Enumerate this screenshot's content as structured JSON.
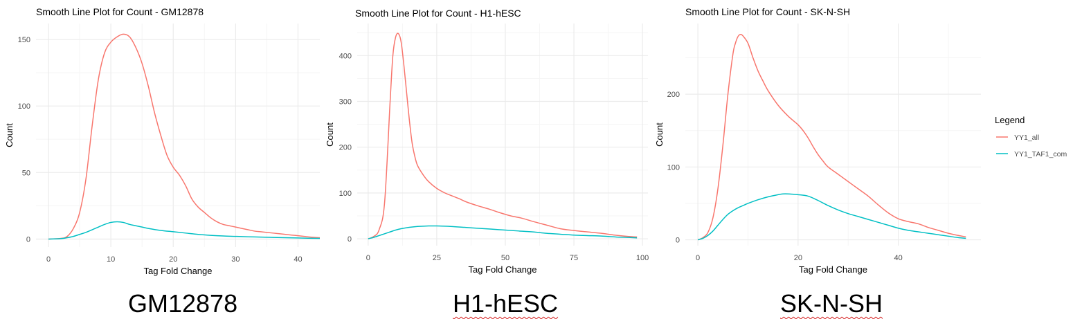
{
  "colors": {
    "yy1_all": "#F8766D",
    "yy1_taf1": "#00BFC4",
    "grid_major": "#ebebeb",
    "grid_minor": "#f5f5f5",
    "text": "#4d4d4d"
  },
  "legend": {
    "title": "Legend",
    "items": [
      "YY1_all",
      "YY1_TAF1_com"
    ]
  },
  "captions": [
    "GM12878",
    "H1-hESC",
    "SK-N-SH"
  ],
  "chart_data": [
    {
      "type": "line",
      "title": "Smooth Line Plot for Count - GM12878",
      "xlabel": "Tag Fold Change",
      "ylabel": "Count",
      "xlim": [
        -2,
        43.5
      ],
      "ylim": [
        -6,
        162
      ],
      "xticks": [
        0,
        10,
        20,
        30,
        40
      ],
      "yticks": [
        0,
        50,
        100,
        150
      ],
      "grid": true,
      "series": [
        {
          "name": "YY1_all",
          "x": [
            0,
            2,
            3,
            4,
            5,
            6,
            7,
            8,
            9,
            10,
            11,
            12,
            13,
            14,
            15,
            16,
            17,
            18,
            19,
            20,
            21,
            22,
            23,
            24,
            25,
            26,
            27,
            28,
            29,
            30,
            31,
            32,
            33,
            34,
            35,
            36,
            37,
            38,
            39,
            40,
            41,
            42,
            43.5
          ],
          "y": [
            0,
            0.5,
            2,
            8,
            20,
            45,
            85,
            120,
            140,
            148,
            152,
            154,
            152,
            144,
            132,
            115,
            95,
            78,
            63,
            54,
            48,
            40,
            30,
            24,
            20,
            16,
            13,
            11,
            10,
            9,
            8,
            7,
            6,
            5.5,
            5,
            4.5,
            4,
            3.5,
            3,
            2.5,
            2,
            1.5,
            1
          ]
        },
        {
          "name": "YY1_TAF1_com",
          "x": [
            0,
            2,
            3,
            4,
            5,
            6,
            7,
            8,
            9,
            10,
            11,
            12,
            13,
            14,
            15,
            16,
            18,
            20,
            22,
            24,
            26,
            28,
            30,
            32,
            34,
            36,
            38,
            40,
            43.5
          ],
          "y": [
            0,
            0.3,
            1,
            2,
            3.5,
            5,
            7,
            9,
            11,
            12.5,
            13,
            12.5,
            11,
            10,
            9,
            8,
            6.5,
            5.5,
            4.5,
            3.5,
            2.8,
            2.3,
            2,
            1.7,
            1.5,
            1.2,
            1,
            0.8,
            0.5
          ]
        }
      ]
    },
    {
      "type": "line",
      "title": "Smooth Line Plot for Count - H1-hESC",
      "xlabel": "Tag Fold Change",
      "ylabel": "Count",
      "xlim": [
        -4,
        102
      ],
      "ylim": [
        -15,
        470
      ],
      "xticks": [
        0,
        25,
        50,
        75,
        100
      ],
      "yticks": [
        0,
        100,
        200,
        300,
        400
      ],
      "grid": true,
      "series": [
        {
          "name": "YY1_all",
          "x": [
            0,
            2,
            4,
            6,
            8,
            9,
            10,
            11,
            12,
            13,
            14,
            15,
            16,
            17,
            18,
            20,
            22,
            25,
            28,
            30,
            33,
            36,
            40,
            44,
            48,
            52,
            56,
            60,
            65,
            70,
            75,
            80,
            85,
            90,
            95,
            98
          ],
          "y": [
            0,
            5,
            20,
            80,
            300,
            400,
            440,
            448,
            430,
            380,
            320,
            260,
            210,
            180,
            160,
            140,
            125,
            110,
            100,
            95,
            88,
            80,
            72,
            65,
            57,
            50,
            45,
            38,
            30,
            22,
            18,
            15,
            12,
            8,
            5,
            4
          ]
        },
        {
          "name": "YY1_TAF1_com",
          "x": [
            0,
            2,
            4,
            6,
            8,
            10,
            12,
            15,
            18,
            20,
            22,
            25,
            30,
            35,
            40,
            45,
            50,
            55,
            60,
            65,
            70,
            75,
            80,
            85,
            90,
            95,
            98
          ],
          "y": [
            0,
            3,
            7,
            11,
            15,
            19,
            22,
            25,
            27,
            27.5,
            28,
            28,
            27,
            25,
            23,
            21,
            19,
            17,
            15,
            12,
            10,
            8,
            7,
            6,
            4,
            3,
            2
          ]
        }
      ]
    },
    {
      "type": "line",
      "title": "Smooth Line Plot for Count - SK-N-SH",
      "xlabel": "Tag Fold Change",
      "ylabel": "Count",
      "xlim": [
        -2.5,
        56.5
      ],
      "ylim": [
        -8,
        297
      ],
      "xticks": [
        0,
        20,
        40
      ],
      "yticks": [
        0,
        100,
        200
      ],
      "grid": true,
      "series": [
        {
          "name": "YY1_all",
          "x": [
            0,
            1,
            2,
            3,
            4,
            5,
            6,
            7,
            7.5,
            8,
            8.5,
            9,
            10,
            11,
            12,
            13,
            14,
            16,
            18,
            20,
            21,
            22,
            23,
            24,
            25,
            26,
            28,
            30,
            32,
            34,
            36,
            38,
            40,
            42,
            44,
            46,
            48,
            50,
            52,
            53.5
          ],
          "y": [
            0,
            3,
            10,
            30,
            70,
            130,
            200,
            255,
            270,
            279,
            282,
            280,
            270,
            250,
            232,
            218,
            205,
            185,
            170,
            158,
            150,
            140,
            128,
            117,
            108,
            100,
            90,
            80,
            70,
            60,
            48,
            37,
            29,
            25,
            22,
            17,
            13,
            9,
            6,
            4
          ]
        },
        {
          "name": "YY1_TAF1_com",
          "x": [
            0,
            1,
            2,
            3,
            4,
            5,
            6,
            7,
            8,
            9,
            10,
            12,
            14,
            16,
            17,
            18,
            20,
            22,
            24,
            26,
            28,
            30,
            32,
            34,
            36,
            38,
            40,
            42,
            44,
            46,
            48,
            50,
            52,
            53.5
          ],
          "y": [
            0,
            2,
            6,
            12,
            20,
            28,
            35,
            40,
            44,
            47,
            50,
            55,
            59,
            62,
            63,
            63,
            62,
            60,
            54,
            47,
            41,
            36,
            32,
            28,
            24,
            20,
            16,
            13,
            11,
            9,
            7,
            5,
            3,
            2
          ]
        }
      ]
    }
  ]
}
